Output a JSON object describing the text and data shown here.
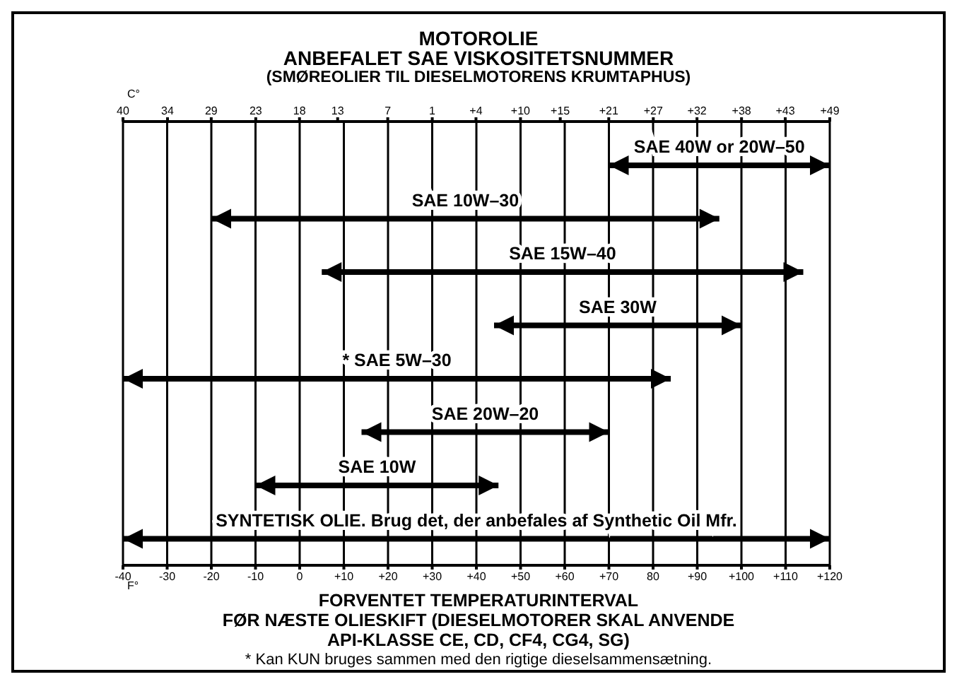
{
  "chart_data": {
    "type": "bar",
    "orientation": "horizontal",
    "title": "MOTOROLIE",
    "subtitle": "ANBEFALET SAE VISKOSITETSNUMMER\n(SMØREOLIER TIL DIESELMOTORENS KRUMTAPHUS)",
    "categories": [
      "SAE 40W or 20W–50",
      "SAE 10W–30",
      "SAE 15W–40",
      "SAE 30W",
      "* SAE 5W–30",
      "SAE 20W–20",
      "SAE 10W",
      "SYNTETISK OLIE. Brug det, der anbefales af Synthetic Oil Mfr."
    ],
    "base": [
      70,
      -20,
      5,
      44,
      -40,
      14,
      -10,
      -40
    ],
    "values": [
      50,
      115,
      109,
      56,
      124,
      56,
      55,
      160
    ],
    "color": "#000000",
    "xlabel": "F°",
    "x2label": "C°",
    "xlim": [
      -40,
      120
    ],
    "xticks": [
      -40,
      -30,
      -20,
      -10,
      0,
      {
        "value": 10,
        "label": "+10"
      },
      {
        "value": 20,
        "label": "+20"
      },
      {
        "value": 30,
        "label": "+30"
      },
      {
        "value": 40,
        "label": "+40"
      },
      {
        "value": 50,
        "label": "+50"
      },
      {
        "value": 60,
        "label": "+60"
      },
      {
        "value": 70,
        "label": "+70"
      },
      80,
      {
        "value": 90,
        "label": "+90"
      },
      {
        "value": 100,
        "label": "+100"
      },
      {
        "value": 110,
        "label": "+110"
      },
      {
        "value": 120,
        "label": "+120"
      }
    ],
    "x2lim": [
      -40,
      48.9
    ],
    "x2ticks": [
      {
        "value": -40,
        "label": "40"
      },
      {
        "value": -34.4,
        "label": "34"
      },
      {
        "value": -28.9,
        "label": "29"
      },
      {
        "value": -23.3,
        "label": "23"
      },
      {
        "value": -17.8,
        "label": "18"
      },
      {
        "value": -13,
        "label": "13"
      },
      {
        "value": -6.7,
        "label": "7"
      },
      {
        "value": -1.1,
        "label": "1"
      },
      {
        "value": 4.4,
        "label": "+4"
      },
      {
        "value": 10,
        "label": "+10"
      },
      {
        "value": 15,
        "label": "+15"
      },
      {
        "value": 21.1,
        "label": "+21"
      },
      {
        "value": 26.7,
        "label": "+27"
      },
      {
        "value": 32.2,
        "label": "+32"
      },
      {
        "value": 37.8,
        "label": "+38"
      },
      {
        "value": 43.3,
        "label": "+43"
      },
      {
        "value": 48.9,
        "label": "+49"
      }
    ],
    "grid": "x",
    "legend": false,
    "annotations": [
      "FORVENTET TEMPERATURINTERVAL",
      "FØR NÆSTE OLIESKIFT (DIESELMOTORER SKAL ANVENDE API-KLASSE CE, CD, CF4, CG4, SG)",
      "* Kan KUN bruges sammen med den rigtige dieselsammensætning."
    ]
  }
}
